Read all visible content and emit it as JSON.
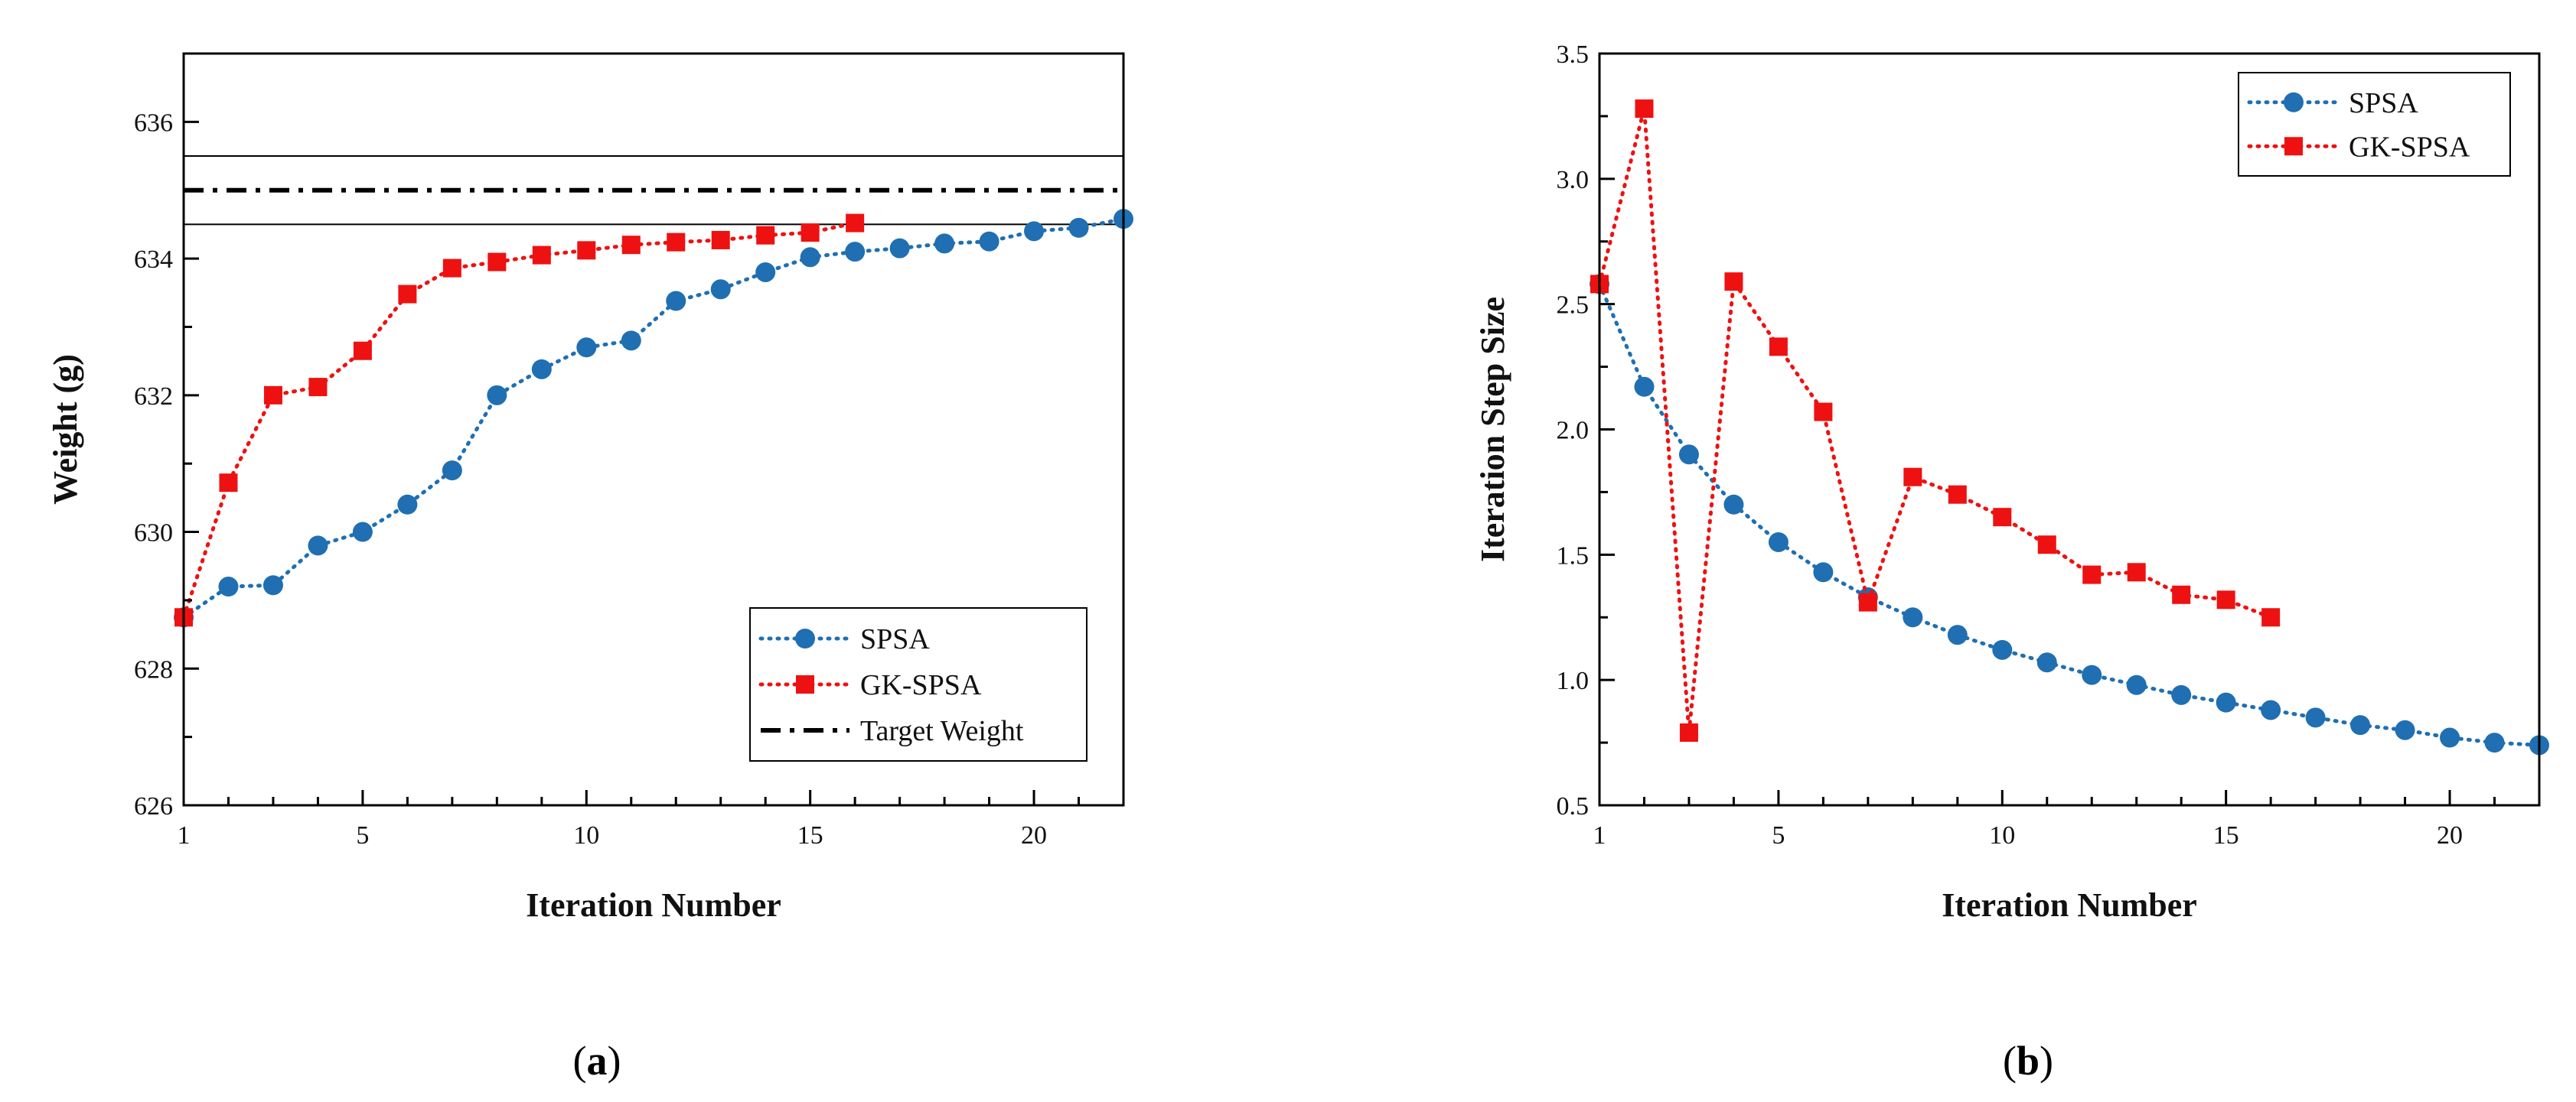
{
  "colors": {
    "spsa": "#1f6fb2",
    "gk": "#ee1111",
    "target": "#000000"
  },
  "chart_data": [
    {
      "type": "line",
      "panel_label": "a",
      "xlabel": "Iteration Number",
      "ylabel": "Weight (g)",
      "xlim": [
        1,
        22
      ],
      "ylim": [
        626,
        637
      ],
      "xticks": [
        1,
        5,
        10,
        15,
        20
      ],
      "yticks": [
        626,
        628,
        630,
        632,
        634,
        636
      ],
      "legend_position": "bottom-right",
      "series": [
        {
          "name": "SPSA",
          "marker": "circle",
          "color": "#1f6fb2",
          "x": [
            1,
            2,
            3,
            4,
            5,
            6,
            7,
            8,
            9,
            10,
            11,
            12,
            13,
            14,
            15,
            16,
            17,
            18,
            19,
            20,
            21,
            22
          ],
          "values": [
            628.75,
            629.2,
            629.22,
            629.8,
            630.0,
            630.4,
            630.9,
            632.0,
            632.38,
            632.7,
            632.8,
            633.38,
            633.55,
            633.8,
            634.02,
            634.1,
            634.15,
            634.22,
            634.25,
            634.4,
            634.45,
            634.58
          ]
        },
        {
          "name": "GK-SPSA",
          "marker": "square",
          "color": "#ee1111",
          "x": [
            1,
            2,
            3,
            4,
            5,
            6,
            7,
            8,
            9,
            10,
            11,
            12,
            13,
            14,
            15,
            16
          ],
          "values": [
            628.75,
            630.72,
            632.0,
            632.12,
            632.65,
            633.48,
            633.86,
            633.95,
            634.05,
            634.12,
            634.2,
            634.24,
            634.27,
            634.34,
            634.38,
            634.52
          ]
        }
      ],
      "reference_lines": [
        {
          "name": "Target Weight",
          "y": 635,
          "style": "dash-dot",
          "in_legend": true
        },
        {
          "name": "upper bound",
          "y": 635.5,
          "style": "thin",
          "in_legend": false
        },
        {
          "name": "lower bound",
          "y": 634.5,
          "style": "thin",
          "in_legend": false
        }
      ]
    },
    {
      "type": "line",
      "panel_label": "b",
      "xlabel": "Iteration Number",
      "ylabel": "Iteration Step Size",
      "xlim": [
        1,
        22
      ],
      "ylim": [
        0.5,
        3.5
      ],
      "xticks": [
        1,
        5,
        10,
        15,
        20
      ],
      "yticks": [
        0.5,
        1.0,
        1.5,
        2.0,
        2.5,
        3.0,
        3.5
      ],
      "ytick_labels": [
        "0.5",
        "1.0",
        "1.5",
        "2.0",
        "2.5",
        "3.0",
        "3.5"
      ],
      "legend_position": "top-right",
      "series": [
        {
          "name": "SPSA",
          "marker": "circle",
          "color": "#1f6fb2",
          "x": [
            1,
            2,
            3,
            4,
            5,
            6,
            7,
            8,
            9,
            10,
            11,
            12,
            13,
            14,
            15,
            16,
            17,
            18,
            19,
            20,
            21,
            22
          ],
          "values": [
            2.58,
            2.17,
            1.9,
            1.7,
            1.55,
            1.43,
            1.33,
            1.25,
            1.18,
            1.12,
            1.07,
            1.02,
            0.98,
            0.94,
            0.91,
            0.88,
            0.85,
            0.82,
            0.8,
            0.77,
            0.75,
            0.74
          ]
        },
        {
          "name": "GK-SPSA",
          "marker": "square",
          "color": "#ee1111",
          "x": [
            1,
            2,
            3,
            4,
            5,
            6,
            7,
            8,
            9,
            10,
            11,
            12,
            13,
            14,
            15,
            16
          ],
          "values": [
            2.58,
            3.28,
            0.79,
            2.59,
            2.33,
            2.07,
            1.31,
            1.81,
            1.74,
            1.65,
            1.54,
            1.42,
            1.43,
            1.34,
            1.32,
            1.25
          ]
        }
      ],
      "reference_lines": []
    }
  ]
}
